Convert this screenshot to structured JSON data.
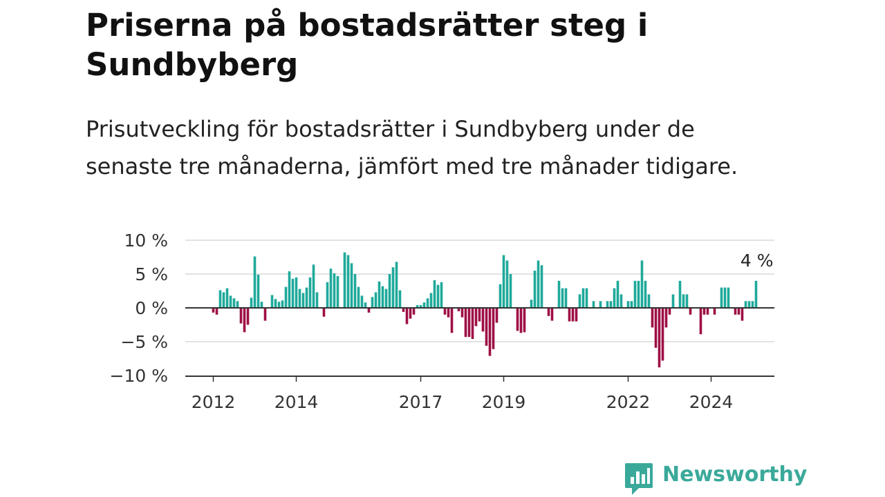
{
  "header": {
    "title": "Priserna på bostadsrätter steg i Sundbyberg",
    "subtitle": "Prisutveckling för bostadsrätter i Sundbyberg under de senaste tre månaderna, jämfört med tre månader tidigare."
  },
  "brand": {
    "name": "Newsworthy"
  },
  "colors": {
    "positive": "#1fa99b",
    "negative": "#9e0f45",
    "brand": "#3aa99a"
  },
  "chart_data": {
    "type": "bar",
    "title": "Priserna på bostadsrätter steg i Sundbyberg",
    "subtitle": "Prisutveckling för bostadsrätter i Sundbyberg under de senaste tre månaderna, jämfört med tre månader tidigare.",
    "unit": "%",
    "x_start": "2012-01",
    "ylim": [
      -10,
      10
    ],
    "y_ticks": [
      10,
      5,
      0,
      -5,
      -10
    ],
    "y_tick_labels": [
      "10 %",
      "5 %",
      "0 %",
      "−5 %",
      "−10 %"
    ],
    "x_tick_labels": [
      {
        "label": "2012",
        "date": "2012-01"
      },
      {
        "label": "2014",
        "date": "2014-01"
      },
      {
        "label": "2017",
        "date": "2017-01"
      },
      {
        "label": "2019",
        "date": "2019-01"
      },
      {
        "label": "2022",
        "date": "2022-01"
      },
      {
        "label": "2024",
        "date": "2024-01"
      }
    ],
    "last_label": "4 %",
    "grid": true,
    "values": [
      -0.7,
      -1.0,
      2.6,
      2.3,
      2.9,
      1.8,
      1.4,
      1.0,
      -2.3,
      -3.6,
      -2.5,
      1.5,
      7.6,
      4.9,
      0.9,
      -1.9,
      0,
      1.9,
      1.3,
      0.9,
      1.1,
      3.1,
      5.4,
      4.3,
      4.5,
      2.8,
      2.2,
      3.0,
      4.5,
      6.4,
      2.3,
      0,
      -1.3,
      3.8,
      5.8,
      5.1,
      4.7,
      0,
      8.2,
      7.8,
      6.6,
      5.0,
      3.1,
      1.8,
      0.8,
      -0.7,
      1.6,
      2.3,
      3.9,
      3.2,
      2.8,
      5.0,
      6.0,
      6.8,
      2.6,
      -0.6,
      -2.4,
      -1.6,
      -1.0,
      0.4,
      0.4,
      0.8,
      1.4,
      2.2,
      4.1,
      3.4,
      3.8,
      -1.0,
      -1.4,
      -3.7,
      0,
      -0.5,
      -1.4,
      -4.3,
      -4.3,
      -4.6,
      -2.7,
      -2.0,
      -3.5,
      -5.6,
      -7.1,
      -6.1,
      -2.2,
      3.5,
      7.8,
      7.0,
      5.0,
      0,
      -3.4,
      -3.7,
      -3.6,
      0,
      1.2,
      5.5,
      7.0,
      6.3,
      0,
      -1.2,
      -1.9,
      0,
      4.0,
      2.9,
      2.9,
      -2.0,
      -2.0,
      -2.0,
      2.0,
      2.9,
      2.9,
      0,
      1.0,
      0,
      1.0,
      0,
      1.0,
      1.0,
      2.9,
      4.0,
      2.0,
      0,
      1.0,
      1.0,
      4.0,
      4.0,
      7.0,
      4.0,
      2.0,
      -2.9,
      -5.9,
      -8.8,
      -7.8,
      -2.9,
      -1.0,
      2.0,
      0,
      4.0,
      2.0,
      2.0,
      -1.0,
      0,
      0,
      -3.9,
      -1.0,
      -1.0,
      0,
      -1.0,
      0,
      3.0,
      3.0,
      3.0,
      0,
      -1.0,
      -1.0,
      -1.9,
      1.0,
      1.0,
      1.0,
      4.0
    ]
  }
}
